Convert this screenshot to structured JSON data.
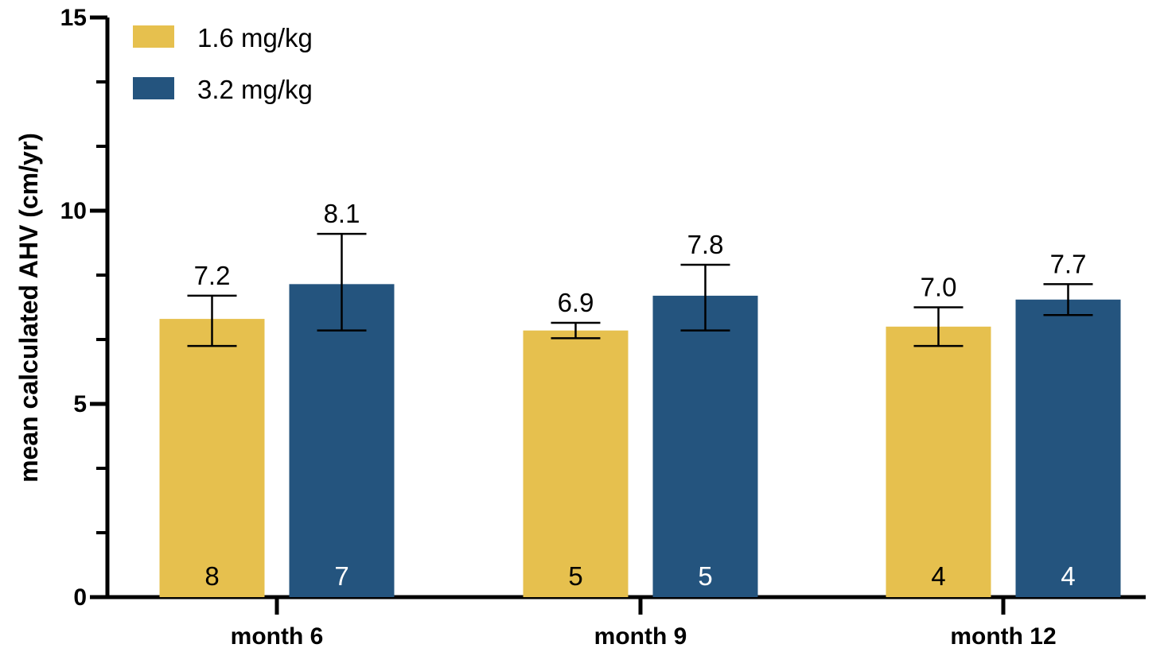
{
  "chart_data": {
    "type": "bar",
    "ylabel": "mean calculated AHV (cm/yr)",
    "xlabel": "",
    "ylim": [
      0,
      15
    ],
    "yticks": [
      0,
      5,
      10,
      15
    ],
    "grid": false,
    "legend_position": "top-left",
    "categories": [
      "month 6",
      "month 9",
      "month 12"
    ],
    "series": [
      {
        "name": "1.6 mg/kg",
        "color": "#E6C04E",
        "n_label_color": "#000000",
        "values": [
          7.2,
          6.9,
          7.0
        ],
        "value_labels": [
          "7.2",
          "6.9",
          "7.0"
        ],
        "error_low": [
          6.5,
          6.7,
          6.5
        ],
        "error_high": [
          7.8,
          7.1,
          7.5
        ],
        "n": [
          "8",
          "5",
          "4"
        ]
      },
      {
        "name": "3.2 mg/kg",
        "color": "#24547E",
        "n_label_color": "#ffffff",
        "values": [
          8.1,
          7.8,
          7.7
        ],
        "value_labels": [
          "8.1",
          "7.8",
          "7.7"
        ],
        "error_low": [
          6.9,
          6.9,
          7.3
        ],
        "error_high": [
          9.4,
          8.6,
          8.1
        ],
        "n": [
          "7",
          "5",
          "4"
        ]
      }
    ]
  }
}
